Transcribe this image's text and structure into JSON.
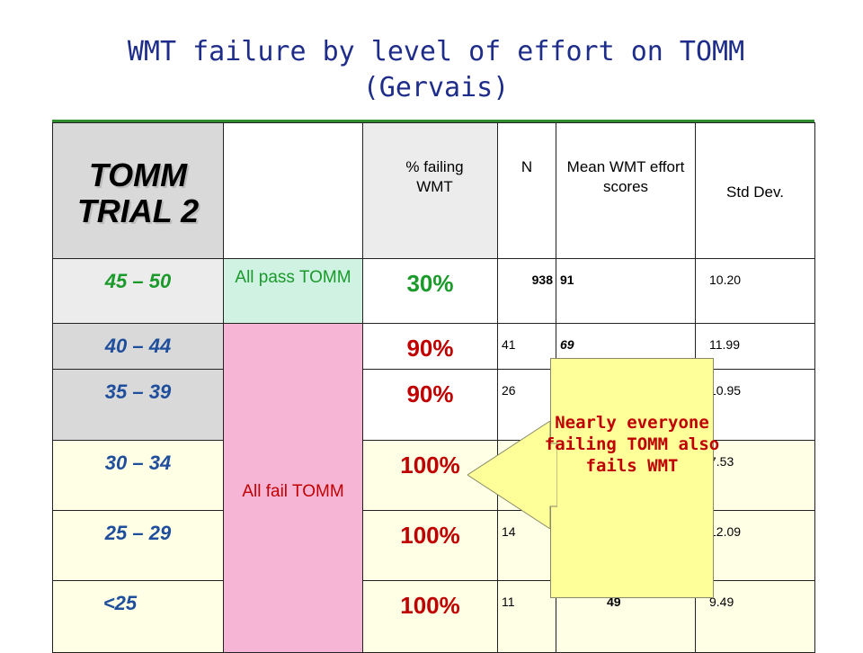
{
  "title": "WMT failure by level of effort on TOMM (Gervais)",
  "header": {
    "trial": "TOMM TRIAL 2",
    "status": "",
    "pct_failing": "% failing WMT",
    "n": "N",
    "mean": "Mean WMT effort scores",
    "sd": "Std Dev."
  },
  "rows": [
    {
      "range": "45 – 50",
      "pct": "30%",
      "n": "938",
      "mean": "91",
      "sd": "10.20"
    },
    {
      "range": "40 – 44",
      "pct": "90%",
      "n": "41",
      "mean": "69",
      "sd": "11.99"
    },
    {
      "range": "35 – 39",
      "pct": "90%",
      "n": "26",
      "mean": "",
      "sd": "10.95"
    },
    {
      "range": "30 – 34",
      "pct": "100%",
      "n": "",
      "mean": "",
      "sd": "7.53"
    },
    {
      "range": "25 – 29",
      "pct": "100%",
      "n": "14",
      "mean": "",
      "sd": "12.09"
    },
    {
      "range": "<25",
      "pct": "100%",
      "n": "11",
      "mean": "49",
      "sd": "9.49"
    }
  ],
  "status_pass": "All pass TOMM",
  "status_fail": "All fail TOMM",
  "callout": "Nearly everyone failing TOMM also fails WMT"
}
